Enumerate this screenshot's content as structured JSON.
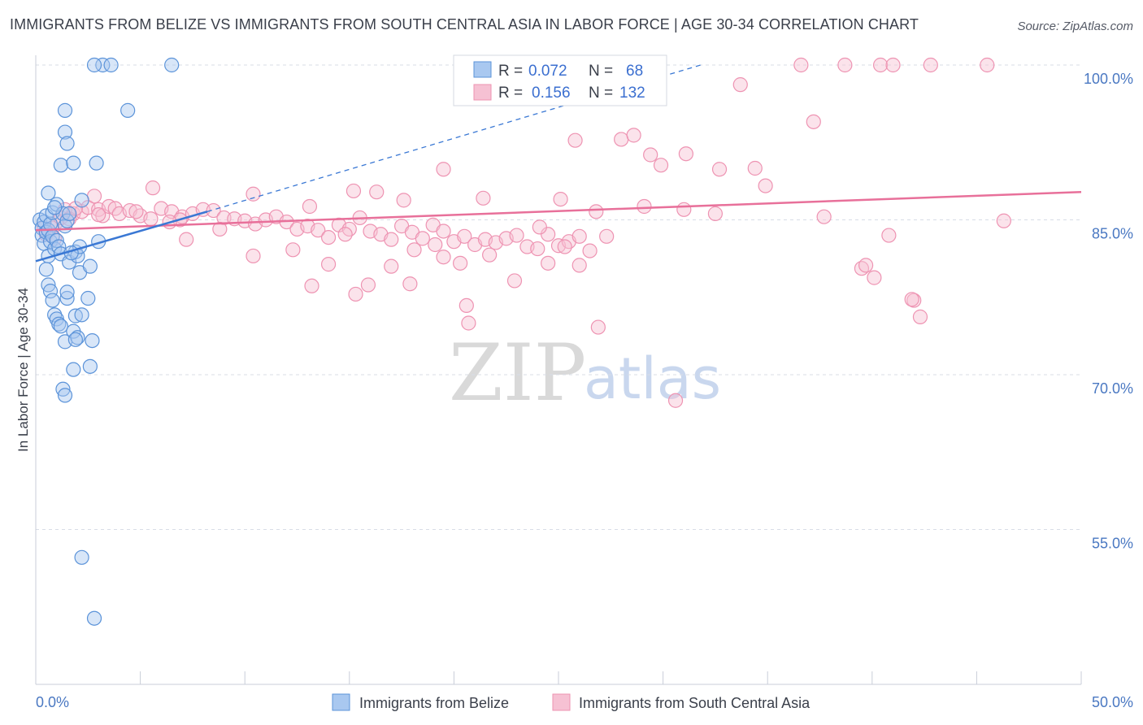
{
  "title": "IMMIGRANTS FROM BELIZE VS IMMIGRANTS FROM SOUTH CENTRAL ASIA IN LABOR FORCE | AGE 30-34 CORRELATION CHART",
  "source": "Source: ZipAtlas.com",
  "watermark": {
    "zip": "ZIP",
    "atlas": "atlas"
  },
  "colors": {
    "belize_fill": "#a9c8f0",
    "belize_stroke": "#5b93d9",
    "belize_line": "#3a78d4",
    "asia_fill": "#f6c1d3",
    "asia_stroke": "#ee93b2",
    "asia_line": "#e8709a",
    "grid": "#d8dde6",
    "tick_label": "#4a78c2"
  },
  "legend": {
    "rows": [
      {
        "r_label": "R =",
        "r_value": "0.072",
        "n_label": "N =",
        "n_value": "68"
      },
      {
        "r_label": "R =",
        "r_value": "0.156",
        "n_label": "N =",
        "n_value": "132"
      }
    ]
  },
  "bottom_legend": [
    "Immigrants from Belize",
    "Immigrants from South Central Asia"
  ],
  "chart_data": {
    "type": "scatter",
    "title": "IMMIGRANTS FROM BELIZE VS IMMIGRANTS FROM SOUTH CENTRAL ASIA IN LABOR FORCE | AGE 30-34 CORRELATION CHART",
    "xlabel": "",
    "ylabel": "In Labor Force | Age 30-34",
    "xlim": [
      0,
      50
    ],
    "ylim": [
      40,
      100
    ],
    "x_tick_labels": [
      "0.0%",
      "50.0%"
    ],
    "y_ticks": [
      55,
      70,
      85,
      100
    ],
    "y_tick_labels": [
      "55.0%",
      "70.0%",
      "85.0%",
      "100.0%"
    ],
    "grid": true,
    "series": [
      {
        "name": "Immigrants from Belize",
        "R": 0.072,
        "N": 68,
        "trend": {
          "x": [
            0,
            8.2
          ],
          "y": [
            81.0,
            85.8
          ]
        },
        "trend_dashed": {
          "x": [
            8.2,
            31.8
          ],
          "y": [
            85.8,
            100.0
          ]
        },
        "points": [
          [
            0.2,
            85.0
          ],
          [
            0.3,
            84.2
          ],
          [
            0.3,
            83.5
          ],
          [
            0.4,
            82.7
          ],
          [
            0.4,
            84.8
          ],
          [
            0.5,
            83.8
          ],
          [
            0.5,
            85.4
          ],
          [
            0.6,
            84.0
          ],
          [
            0.6,
            81.5
          ],
          [
            0.7,
            82.9
          ],
          [
            0.7,
            84.6
          ],
          [
            0.8,
            83.4
          ],
          [
            0.8,
            85.7
          ],
          [
            0.9,
            82.2
          ],
          [
            1.0,
            86.5
          ],
          [
            1.0,
            83.0
          ],
          [
            1.1,
            82.4
          ],
          [
            1.2,
            81.7
          ],
          [
            1.3,
            85.6
          ],
          [
            1.4,
            84.4
          ],
          [
            0.5,
            80.2
          ],
          [
            0.6,
            78.7
          ],
          [
            0.7,
            78.1
          ],
          [
            0.8,
            77.2
          ],
          [
            0.9,
            75.8
          ],
          [
            1.0,
            75.4
          ],
          [
            1.1,
            74.9
          ],
          [
            1.2,
            74.7
          ],
          [
            1.5,
            77.4
          ],
          [
            1.4,
            73.2
          ],
          [
            1.6,
            80.9
          ],
          [
            1.8,
            74.2
          ],
          [
            2.0,
            73.6
          ],
          [
            1.9,
            75.7
          ],
          [
            1.5,
            78.0
          ],
          [
            1.3,
            68.6
          ],
          [
            1.8,
            70.5
          ],
          [
            1.4,
            93.5
          ],
          [
            1.2,
            90.3
          ],
          [
            1.5,
            92.4
          ],
          [
            0.6,
            87.6
          ],
          [
            1.8,
            90.5
          ],
          [
            1.9,
            81.9
          ],
          [
            2.0,
            81.5
          ],
          [
            2.1,
            82.4
          ],
          [
            1.5,
            84.9
          ],
          [
            1.6,
            85.6
          ],
          [
            1.7,
            81.8
          ],
          [
            2.1,
            79.9
          ],
          [
            2.5,
            77.4
          ],
          [
            2.6,
            70.8
          ],
          [
            2.7,
            73.3
          ],
          [
            1.4,
            95.6
          ],
          [
            3.2,
            100.0
          ],
          [
            2.8,
            100.0
          ],
          [
            3.6,
            100.0
          ],
          [
            4.4,
            95.6
          ],
          [
            6.5,
            100.0
          ],
          [
            2.9,
            90.5
          ],
          [
            3.0,
            82.9
          ],
          [
            1.4,
            68.0
          ],
          [
            2.2,
            86.9
          ],
          [
            0.9,
            86.2
          ],
          [
            2.6,
            80.5
          ],
          [
            2.2,
            75.8
          ],
          [
            1.9,
            73.4
          ],
          [
            2.2,
            52.3
          ],
          [
            2.8,
            46.4
          ]
        ]
      },
      {
        "name": "Immigrants from South Central Asia",
        "R": 0.156,
        "N": 132,
        "trend": {
          "x": [
            0,
            50
          ],
          "y": [
            84.0,
            87.7
          ]
        },
        "points": [
          [
            0.5,
            83.6
          ],
          [
            0.8,
            84.2
          ],
          [
            1.0,
            84.8
          ],
          [
            1.2,
            85.2
          ],
          [
            1.4,
            86.0
          ],
          [
            1.8,
            85.6
          ],
          [
            2.2,
            85.8
          ],
          [
            2.5,
            86.2
          ],
          [
            3.0,
            86.0
          ],
          [
            3.2,
            85.4
          ],
          [
            3.5,
            86.3
          ],
          [
            3.8,
            86.1
          ],
          [
            4.0,
            85.6
          ],
          [
            4.5,
            85.9
          ],
          [
            5.0,
            85.4
          ],
          [
            5.5,
            85.1
          ],
          [
            6.0,
            86.1
          ],
          [
            6.5,
            85.8
          ],
          [
            7.0,
            85.3
          ],
          [
            7.5,
            85.6
          ],
          [
            8.0,
            86.0
          ],
          [
            8.5,
            85.9
          ],
          [
            9.0,
            85.2
          ],
          [
            9.5,
            85.1
          ],
          [
            10.0,
            84.9
          ],
          [
            10.5,
            84.6
          ],
          [
            11.0,
            85.0
          ],
          [
            11.5,
            85.3
          ],
          [
            12.0,
            84.8
          ],
          [
            12.5,
            84.1
          ],
          [
            13.0,
            84.4
          ],
          [
            13.5,
            84.0
          ],
          [
            14.0,
            83.3
          ],
          [
            14.5,
            84.5
          ],
          [
            15.0,
            84.1
          ],
          [
            15.5,
            85.2
          ],
          [
            16.0,
            83.9
          ],
          [
            16.5,
            83.6
          ],
          [
            17.0,
            83.1
          ],
          [
            17.5,
            84.4
          ],
          [
            18.0,
            83.8
          ],
          [
            18.5,
            83.2
          ],
          [
            19.0,
            84.5
          ],
          [
            19.5,
            83.9
          ],
          [
            20.0,
            82.9
          ],
          [
            20.5,
            83.4
          ],
          [
            21.0,
            82.6
          ],
          [
            21.5,
            83.1
          ],
          [
            22.0,
            82.8
          ],
          [
            22.5,
            83.2
          ],
          [
            23.0,
            83.5
          ],
          [
            23.5,
            82.4
          ],
          [
            24.0,
            82.2
          ],
          [
            24.5,
            83.6
          ],
          [
            25.0,
            82.5
          ],
          [
            25.5,
            82.9
          ],
          [
            26.0,
            83.4
          ],
          [
            3.0,
            85.5
          ],
          [
            4.8,
            85.8
          ],
          [
            6.9,
            85.0
          ],
          [
            2.8,
            87.3
          ],
          [
            5.6,
            88.1
          ],
          [
            10.4,
            87.5
          ],
          [
            13.1,
            86.3
          ],
          [
            15.2,
            87.8
          ],
          [
            16.3,
            87.7
          ],
          [
            17.6,
            86.9
          ],
          [
            19.5,
            89.9
          ],
          [
            21.4,
            87.1
          ],
          [
            25.1,
            87.0
          ],
          [
            26.8,
            85.8
          ],
          [
            24.1,
            84.3
          ],
          [
            25.8,
            92.7
          ],
          [
            28.0,
            92.8
          ],
          [
            28.6,
            93.2
          ],
          [
            29.4,
            91.3
          ],
          [
            29.9,
            90.3
          ],
          [
            31.1,
            91.4
          ],
          [
            32.7,
            89.9
          ],
          [
            33.7,
            98.1
          ],
          [
            34.4,
            90.0
          ],
          [
            34.9,
            88.3
          ],
          [
            36.6,
            100.0
          ],
          [
            38.7,
            100.0
          ],
          [
            40.4,
            100.0
          ],
          [
            41.0,
            100.0
          ],
          [
            42.8,
            100.0
          ],
          [
            45.5,
            100.0
          ],
          [
            37.2,
            94.5
          ],
          [
            29.1,
            86.3
          ],
          [
            31.0,
            86.0
          ],
          [
            32.5,
            85.6
          ],
          [
            27.3,
            83.4
          ],
          [
            26.5,
            82.0
          ],
          [
            25.3,
            82.4
          ],
          [
            24.5,
            80.8
          ],
          [
            22.9,
            79.1
          ],
          [
            21.7,
            81.6
          ],
          [
            20.3,
            80.8
          ],
          [
            19.5,
            81.4
          ],
          [
            18.1,
            82.1
          ],
          [
            17.0,
            80.5
          ],
          [
            15.9,
            78.7
          ],
          [
            15.3,
            77.8
          ],
          [
            14.0,
            80.7
          ],
          [
            13.2,
            78.6
          ],
          [
            12.3,
            82.1
          ],
          [
            10.4,
            81.5
          ],
          [
            8.8,
            84.1
          ],
          [
            7.2,
            83.1
          ],
          [
            6.4,
            84.8
          ],
          [
            20.6,
            76.7
          ],
          [
            20.7,
            75.0
          ],
          [
            17.9,
            78.8
          ],
          [
            14.8,
            83.6
          ],
          [
            19.1,
            82.6
          ],
          [
            26.0,
            80.6
          ],
          [
            26.9,
            74.6
          ],
          [
            30.6,
            67.5
          ],
          [
            37.7,
            85.3
          ],
          [
            39.5,
            80.3
          ],
          [
            39.7,
            80.6
          ],
          [
            40.1,
            79.4
          ],
          [
            40.8,
            83.5
          ],
          [
            42.0,
            77.2
          ],
          [
            42.3,
            75.6
          ],
          [
            41.9,
            77.3
          ],
          [
            46.3,
            84.9
          ],
          [
            0.4,
            84.2
          ],
          [
            1.6,
            85.1
          ],
          [
            1.9,
            86.1
          ],
          [
            0.9,
            83.2
          ]
        ]
      }
    ]
  }
}
